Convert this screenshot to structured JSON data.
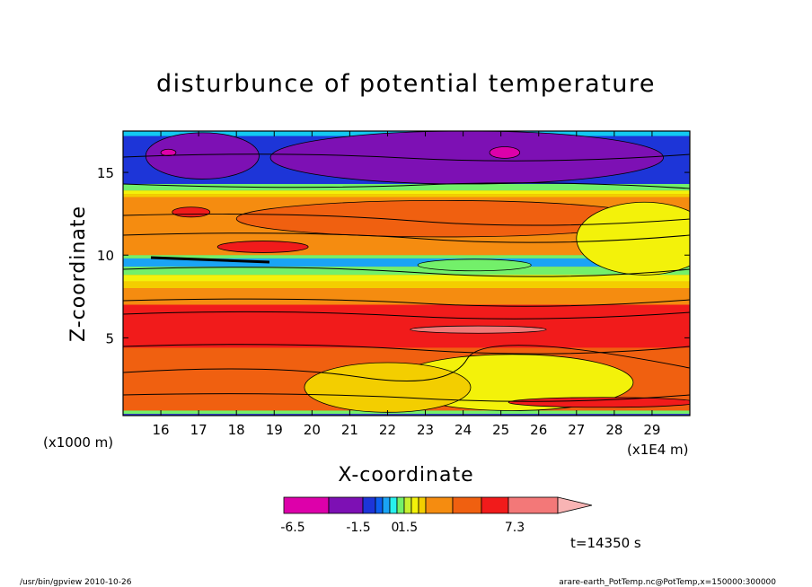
{
  "chart_data": {
    "type": "heatmap",
    "title": "disturbunce of potential temperature",
    "xlabel": "X-coordinate",
    "ylabel": "Z-coordinate",
    "x_unit_label": "(x1E4 m)",
    "y_unit_label": "(x1000 m)",
    "xlim": [
      15,
      30
    ],
    "ylim": [
      0.3,
      17.5
    ],
    "x_ticks": [
      "16",
      "17",
      "18",
      "19",
      "20",
      "21",
      "22",
      "23",
      "24",
      "25",
      "26",
      "27",
      "28",
      "29"
    ],
    "y_ticks": [
      "5",
      "10",
      "15"
    ],
    "colorbar": {
      "colors": [
        "#dd00aa",
        "#7d10b4",
        "#1d35d8",
        "#0c5ff0",
        "#1aa4f5",
        "#28f0ee",
        "#73f06a",
        "#c7f030",
        "#f3f20a",
        "#f3ce00",
        "#f58c10",
        "#f06010",
        "#f11b1b",
        "#f37878",
        "#f8b4b4"
      ],
      "labels": [
        "-6.5",
        "-1.5",
        "0",
        "1.5",
        "7.3"
      ]
    },
    "layers": [
      {
        "z_bottom": 16.0,
        "z_top": 17.5,
        "color": "#12c9f2"
      },
      {
        "z_bottom": 14.0,
        "z_top": 17.2,
        "color": "#1d35d8"
      },
      {
        "z_bottom": 13.9,
        "z_top": 14.3,
        "color": "#73f06a"
      },
      {
        "z_bottom": 13.7,
        "z_top": 13.9,
        "color": "#f3f20a"
      },
      {
        "z_bottom": 13.5,
        "z_top": 13.7,
        "color": "#f3ce00"
      },
      {
        "z_bottom": 10.0,
        "z_top": 13.5,
        "color": "#f58c10"
      },
      {
        "z_bottom": 9.8,
        "z_top": 10.0,
        "color": "#73f06a"
      },
      {
        "z_bottom": 9.3,
        "z_top": 9.8,
        "color": "#1aa4f5"
      },
      {
        "z_bottom": 8.8,
        "z_top": 9.3,
        "color": "#73f06a"
      },
      {
        "z_bottom": 8.4,
        "z_top": 8.8,
        "color": "#f3f20a"
      },
      {
        "z_bottom": 8.0,
        "z_top": 8.4,
        "color": "#f3ce00"
      },
      {
        "z_bottom": 7.0,
        "z_top": 8.0,
        "color": "#f58c10"
      },
      {
        "z_bottom": 4.4,
        "z_top": 7.0,
        "color": "#f11b1b"
      },
      {
        "z_bottom": 0.6,
        "z_top": 4.4,
        "color": "#f06010"
      },
      {
        "z_bottom": 0.4,
        "z_top": 0.6,
        "color": "#73f06a"
      },
      {
        "z_bottom": 0.3,
        "z_top": 0.4,
        "color": "#1d35d8"
      }
    ],
    "regions": [
      {
        "name": "upper-left-minimum",
        "cx": 17.1,
        "cz": 16.0,
        "rx": 1.5,
        "rz": 1.4,
        "color": "#7d10b4"
      },
      {
        "name": "upper-right-minimum",
        "cx": 24.1,
        "cz": 15.9,
        "rx": 5.2,
        "rz": 1.6,
        "color": "#7d10b4"
      },
      {
        "name": "magenta-core-left",
        "cx": 16.2,
        "cz": 16.2,
        "rx": 0.2,
        "rz": 0.2,
        "color": "#dd00aa"
      },
      {
        "name": "magenta-core-right",
        "cx": 25.1,
        "cz": 16.2,
        "rx": 0.4,
        "rz": 0.35,
        "color": "#dd00aa"
      },
      {
        "name": "upper-orange-tongue",
        "cx": 23.5,
        "cz": 12.2,
        "rx": 5.5,
        "rz": 1.1,
        "color": "#f06010"
      },
      {
        "name": "upper-right-yellow",
        "cx": 28.8,
        "cz": 11.0,
        "rx": 1.8,
        "rz": 2.2,
        "color": "#f3f20a"
      },
      {
        "name": "red-patch-upper-left",
        "cx": 16.8,
        "cz": 12.6,
        "rx": 0.5,
        "rz": 0.3,
        "color": "#f11b1b"
      },
      {
        "name": "red-patch-mid-left",
        "cx": 18.7,
        "cz": 10.5,
        "rx": 1.2,
        "rz": 0.35,
        "color": "#f11b1b"
      },
      {
        "name": "green-tongue",
        "cx": 24.3,
        "cz": 9.4,
        "rx": 1.5,
        "rz": 0.35,
        "color": "#73f06a"
      },
      {
        "name": "pink-lens",
        "cx": 24.4,
        "cz": 5.5,
        "rx": 1.8,
        "rz": 0.22,
        "color": "#f37878"
      },
      {
        "name": "lower-yellow-dome",
        "cx": 25.3,
        "cz": 2.3,
        "rx": 3.2,
        "rz": 1.7,
        "color": "#f3f20a"
      },
      {
        "name": "lower-amber-dome",
        "cx": 22.0,
        "cz": 2.0,
        "rx": 2.2,
        "rz": 1.5,
        "color": "#f3ce00"
      },
      {
        "name": "lower-right-red-band",
        "cx": 27.7,
        "cz": 1.1,
        "rx": 2.5,
        "rz": 0.3,
        "color": "#f11b1b"
      }
    ]
  },
  "timestamp_label": "t=14350 s",
  "footer": {
    "left": "/usr/bin/gpview   2010-10-26",
    "right": "arare-earth_PotTemp.nc@PotTemp,x=150000:300000"
  }
}
